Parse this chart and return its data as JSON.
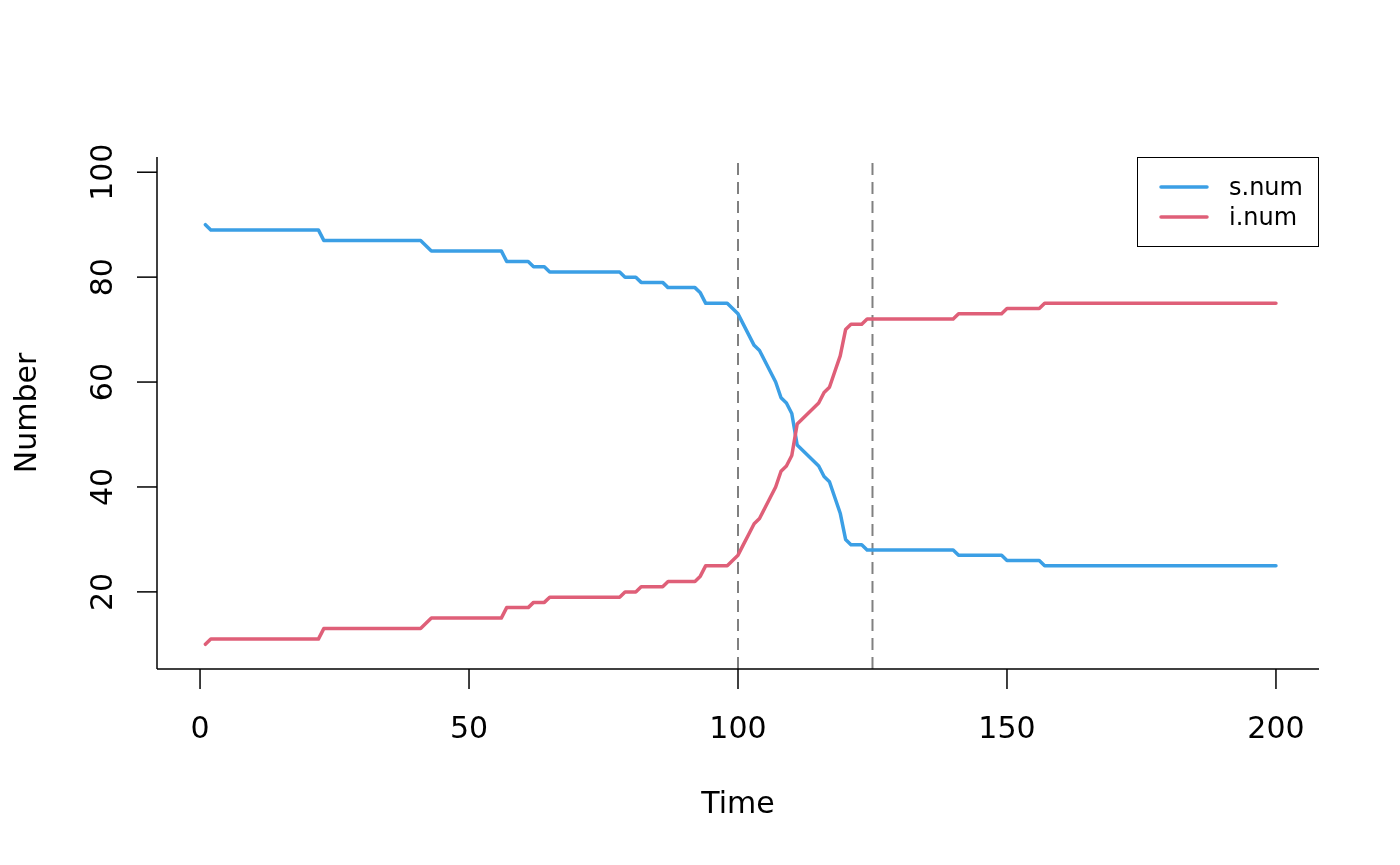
{
  "chart_data": {
    "type": "line",
    "xlabel": "Time",
    "ylabel": "Number",
    "x": [
      1,
      2,
      22,
      23,
      41,
      43,
      56,
      57,
      61,
      62,
      64,
      65,
      78,
      79,
      81,
      82,
      86,
      87,
      92,
      93,
      94,
      98,
      99,
      100,
      101,
      102,
      103,
      104,
      105,
      106,
      107,
      108,
      109,
      110,
      111,
      112,
      113,
      114,
      115,
      116,
      117,
      118,
      119,
      120,
      121,
      123,
      124,
      140,
      141,
      149,
      150,
      156,
      157,
      200
    ],
    "series": [
      {
        "name": "s.num",
        "color": "#3b9fe5",
        "values": [
          90,
          89,
          89,
          87,
          87,
          85,
          85,
          83,
          83,
          82,
          82,
          81,
          81,
          80,
          80,
          79,
          79,
          78,
          78,
          77,
          75,
          75,
          74,
          73,
          71,
          69,
          67,
          66,
          64,
          62,
          60,
          57,
          56,
          54,
          48,
          47,
          46,
          45,
          44,
          42,
          41,
          38,
          35,
          30,
          29,
          29,
          28,
          28,
          27,
          27,
          26,
          26,
          25,
          25
        ]
      },
      {
        "name": "i.num",
        "color": "#df5f78",
        "values": [
          10,
          11,
          11,
          13,
          13,
          15,
          15,
          17,
          17,
          18,
          18,
          19,
          19,
          20,
          20,
          21,
          21,
          22,
          22,
          23,
          25,
          25,
          26,
          27,
          29,
          31,
          33,
          34,
          36,
          38,
          40,
          43,
          44,
          46,
          52,
          53,
          54,
          55,
          56,
          58,
          59,
          62,
          65,
          70,
          71,
          71,
          72,
          72,
          73,
          73,
          74,
          74,
          75,
          75
        ]
      }
    ],
    "xlim": [
      -8,
      208
    ],
    "xticks": [
      0,
      50,
      100,
      150,
      200
    ],
    "ylim": [
      5.3,
      102.9
    ],
    "yticks": [
      20,
      40,
      60,
      80,
      100
    ],
    "ref_lines": [
      {
        "axis": "x",
        "value": 100,
        "color": "#808080",
        "line_style": "dashed"
      },
      {
        "axis": "x",
        "value": 125,
        "color": "#808080",
        "line_style": "dashed"
      }
    ],
    "legend": "top right",
    "marker": "none",
    "line_style": "solid"
  }
}
